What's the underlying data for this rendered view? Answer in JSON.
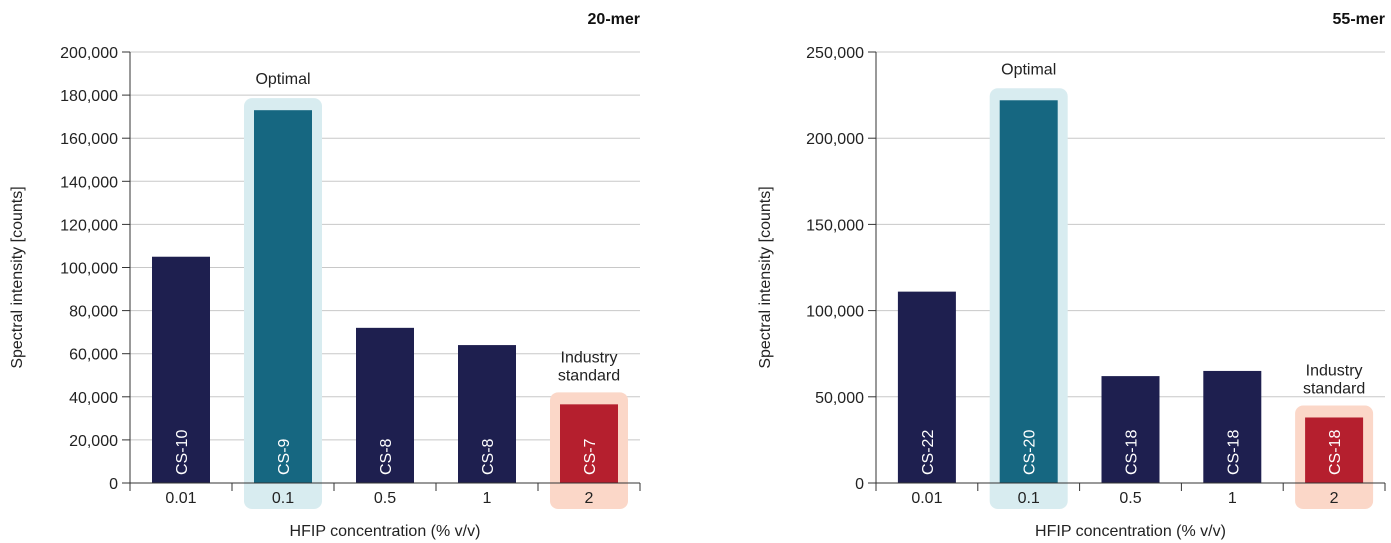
{
  "colors": {
    "bar": "#1e1f4f",
    "optimal_bar": "#166781",
    "industry_bar": "#b51f2e",
    "optimal_highlight": "#d8ecf0",
    "industry_highlight": "#fbd7c8",
    "grid": "#c8c8c8",
    "axis": "#333333"
  },
  "chart_data": [
    {
      "type": "bar",
      "title": "20-mer",
      "xlabel": "HFIP concentration (% v/v)",
      "ylabel": "Spectral intensity [counts]",
      "categories": [
        "0.01",
        "0.1",
        "0.5",
        "1",
        "2"
      ],
      "values": [
        105000,
        173000,
        72000,
        64000,
        36500
      ],
      "bar_labels": [
        "CS-10",
        "CS-9",
        "CS-8",
        "CS-8",
        "CS-7"
      ],
      "ylim": [
        0,
        200000
      ],
      "yticks": [
        0,
        20000,
        40000,
        60000,
        80000,
        100000,
        120000,
        140000,
        160000,
        180000,
        200000
      ],
      "ytick_labels": [
        "0",
        "20,000",
        "40,000",
        "60,000",
        "80,000",
        "100,000",
        "120,000",
        "140,000",
        "160,000",
        "180,000",
        "200,000"
      ],
      "grid": true,
      "optimal_index": 1,
      "industry_index": 4,
      "optimal_label": "Optimal",
      "industry_label": [
        "Industry",
        "standard"
      ]
    },
    {
      "type": "bar",
      "title": "55-mer",
      "xlabel": "HFIP concentration (% v/v)",
      "ylabel": "Spectral intensity [counts]",
      "categories": [
        "0.01",
        "0.1",
        "0.5",
        "1",
        "2"
      ],
      "values": [
        111000,
        222000,
        62000,
        65000,
        38000
      ],
      "bar_labels": [
        "CS-22",
        "CS-20",
        "CS-18",
        "CS-18",
        "CS-18"
      ],
      "ylim": [
        0,
        250000
      ],
      "yticks": [
        0,
        50000,
        100000,
        150000,
        200000,
        250000
      ],
      "ytick_labels": [
        "0",
        "50,000",
        "100,000",
        "150,000",
        "200,000",
        "250,000"
      ],
      "grid": true,
      "optimal_index": 1,
      "industry_index": 4,
      "optimal_label": "Optimal",
      "industry_label": [
        "Industry",
        "standard"
      ]
    }
  ]
}
